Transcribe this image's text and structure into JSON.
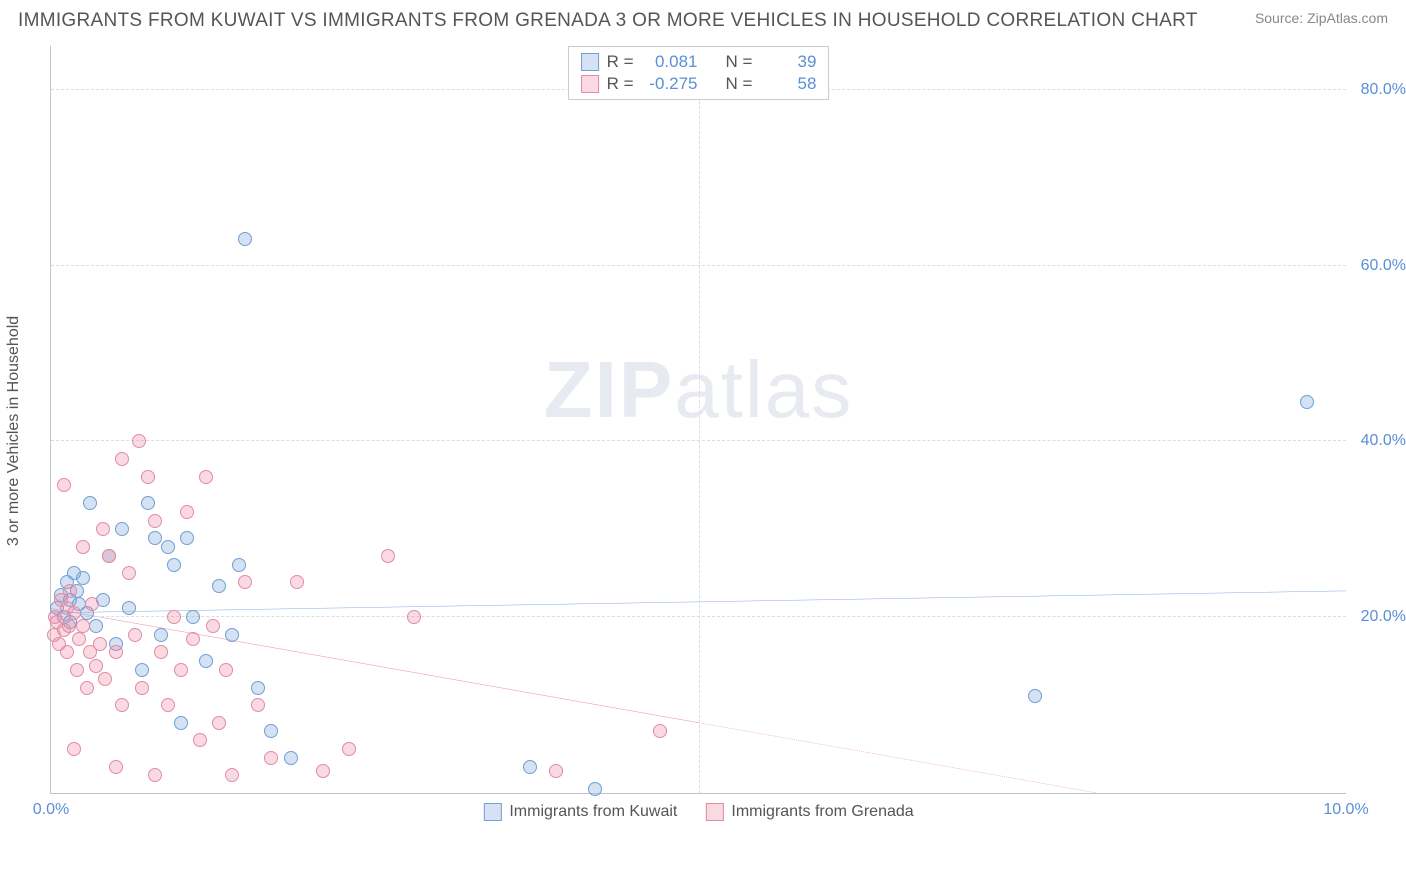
{
  "title": "IMMIGRANTS FROM KUWAIT VS IMMIGRANTS FROM GRENADA 3 OR MORE VEHICLES IN HOUSEHOLD CORRELATION CHART",
  "source": "Source: ZipAtlas.com",
  "y_axis_label": "3 or more Vehicles in Household",
  "watermark_a": "ZIP",
  "watermark_b": "atlas",
  "chart": {
    "type": "scatter",
    "xlim": [
      0,
      10
    ],
    "ylim": [
      0,
      85
    ],
    "x_ticks": [
      {
        "v": 0,
        "label": "0.0%"
      },
      {
        "v": 10,
        "label": "10.0%"
      }
    ],
    "y_ticks": [
      {
        "v": 20,
        "label": "20.0%"
      },
      {
        "v": 40,
        "label": "40.0%"
      },
      {
        "v": 60,
        "label": "60.0%"
      },
      {
        "v": 80,
        "label": "80.0%"
      }
    ],
    "background_color": "#ffffff",
    "grid_color": "#d8dce3",
    "axis_color": "#bfc4cc",
    "tick_label_color": "#5b8fd6"
  },
  "series": [
    {
      "name": "Immigrants from Kuwait",
      "fill_color": "rgba(133,172,222,0.35)",
      "stroke_color": "#6fa0d8",
      "line_color": "#4a86d0",
      "r_value": "0.081",
      "n_value": "39",
      "regression": {
        "x1": 0,
        "y1": 20.5,
        "x2": 10,
        "y2": 23.0,
        "dash_from_x": null
      },
      "points": [
        [
          0.05,
          21
        ],
        [
          0.08,
          22.5
        ],
        [
          0.1,
          20
        ],
        [
          0.12,
          24
        ],
        [
          0.15,
          22
        ],
        [
          0.15,
          19.5
        ],
        [
          0.2,
          23
        ],
        [
          0.22,
          21.5
        ],
        [
          0.25,
          24.5
        ],
        [
          0.28,
          20.5
        ],
        [
          0.3,
          33
        ],
        [
          0.35,
          19
        ],
        [
          0.4,
          22
        ],
        [
          0.45,
          27
        ],
        [
          0.5,
          17
        ],
        [
          0.55,
          30
        ],
        [
          0.6,
          21
        ],
        [
          0.7,
          14
        ],
        [
          0.75,
          33
        ],
        [
          0.8,
          29
        ],
        [
          0.85,
          18
        ],
        [
          0.9,
          28
        ],
        [
          0.95,
          26
        ],
        [
          1.0,
          8
        ],
        [
          1.05,
          29
        ],
        [
          1.1,
          20
        ],
        [
          1.2,
          15
        ],
        [
          1.3,
          23.5
        ],
        [
          1.4,
          18
        ],
        [
          1.45,
          26
        ],
        [
          1.5,
          63
        ],
        [
          1.6,
          12
        ],
        [
          1.7,
          7
        ],
        [
          1.85,
          4
        ],
        [
          3.7,
          3
        ],
        [
          4.2,
          0.5
        ],
        [
          7.6,
          11
        ],
        [
          9.7,
          44.5
        ],
        [
          0.18,
          25
        ]
      ]
    },
    {
      "name": "Immigrants from Grenada",
      "fill_color": "rgba(235,140,165,0.32)",
      "stroke_color": "#e48aa4",
      "line_color": "#e05d84",
      "r_value": "-0.275",
      "n_value": "58",
      "regression": {
        "x1": 0,
        "y1": 21.0,
        "x2": 10,
        "y2": -5.0,
        "dash_from_x": 5.0
      },
      "points": [
        [
          0.02,
          18
        ],
        [
          0.03,
          20
        ],
        [
          0.05,
          19.5
        ],
        [
          0.06,
          17
        ],
        [
          0.08,
          22
        ],
        [
          0.1,
          18.5
        ],
        [
          0.1,
          35
        ],
        [
          0.12,
          21
        ],
        [
          0.12,
          16
        ],
        [
          0.14,
          19
        ],
        [
          0.15,
          23
        ],
        [
          0.18,
          20.5
        ],
        [
          0.18,
          5
        ],
        [
          0.2,
          14
        ],
        [
          0.22,
          17.5
        ],
        [
          0.25,
          19
        ],
        [
          0.25,
          28
        ],
        [
          0.28,
          12
        ],
        [
          0.3,
          16
        ],
        [
          0.32,
          21.5
        ],
        [
          0.35,
          14.5
        ],
        [
          0.38,
          17
        ],
        [
          0.4,
          30
        ],
        [
          0.42,
          13
        ],
        [
          0.45,
          27
        ],
        [
          0.5,
          16
        ],
        [
          0.5,
          3
        ],
        [
          0.55,
          38
        ],
        [
          0.55,
          10
        ],
        [
          0.6,
          25
        ],
        [
          0.65,
          18
        ],
        [
          0.68,
          40
        ],
        [
          0.7,
          12
        ],
        [
          0.75,
          36
        ],
        [
          0.8,
          31
        ],
        [
          0.8,
          2
        ],
        [
          0.85,
          16
        ],
        [
          0.9,
          10
        ],
        [
          0.95,
          20
        ],
        [
          1.0,
          14
        ],
        [
          1.05,
          32
        ],
        [
          1.1,
          17.5
        ],
        [
          1.15,
          6
        ],
        [
          1.2,
          36
        ],
        [
          1.25,
          19
        ],
        [
          1.3,
          8
        ],
        [
          1.35,
          14
        ],
        [
          1.4,
          2
        ],
        [
          1.5,
          24
        ],
        [
          1.6,
          10
        ],
        [
          1.7,
          4
        ],
        [
          1.9,
          24
        ],
        [
          2.1,
          2.5
        ],
        [
          2.3,
          5
        ],
        [
          2.6,
          27
        ],
        [
          2.8,
          20
        ],
        [
          3.9,
          2.5
        ],
        [
          4.7,
          7
        ]
      ]
    }
  ],
  "legend_top_labels": {
    "r": "R =",
    "n": "N ="
  }
}
